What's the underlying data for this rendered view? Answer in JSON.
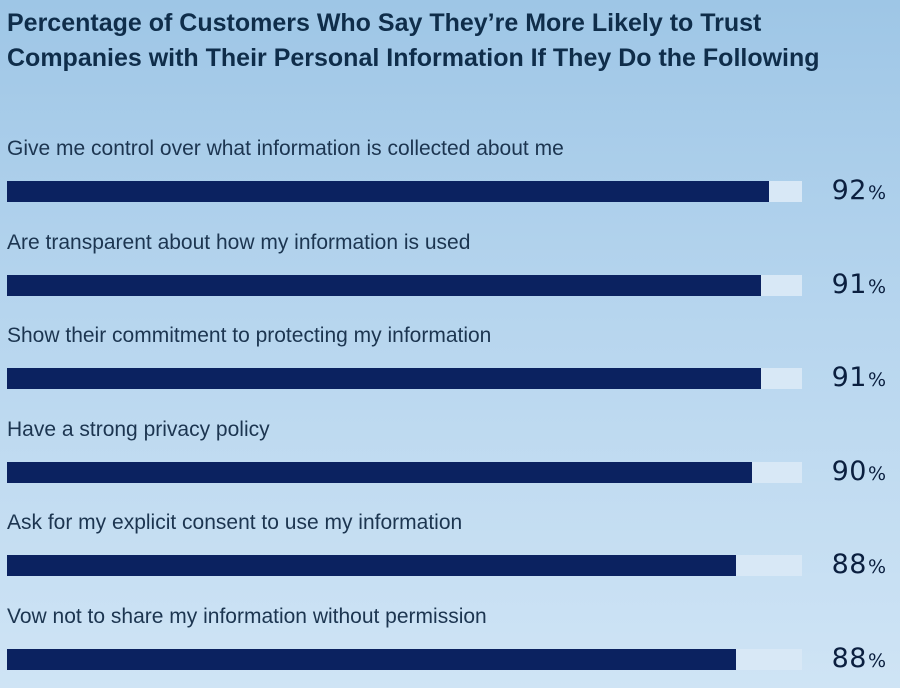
{
  "chart_data": {
    "type": "bar",
    "orientation": "horizontal",
    "title_lines": [
      "Percentage of Customers Who Say They’re More Likely to Trust",
      "Companies with Their Personal Information If They Do the Following"
    ],
    "categories": [
      "Give me control over what information is collected about me",
      "Are transparent about how my information is used",
      "Show their commitment to protecting my information",
      "Have a strong privacy policy",
      "Ask for my explicit consent to use my information",
      "Vow not to share my information without permission"
    ],
    "values": [
      92,
      91,
      91,
      90,
      88,
      88
    ],
    "value_suffix": "%",
    "xlim": [
      0,
      100
    ],
    "grid": false,
    "legend": "none"
  },
  "colors": {
    "bar_fill": "#0b2260",
    "bar_track": "#d8e8f6",
    "title": "#0f2d4a",
    "label": "#1c3550"
  }
}
